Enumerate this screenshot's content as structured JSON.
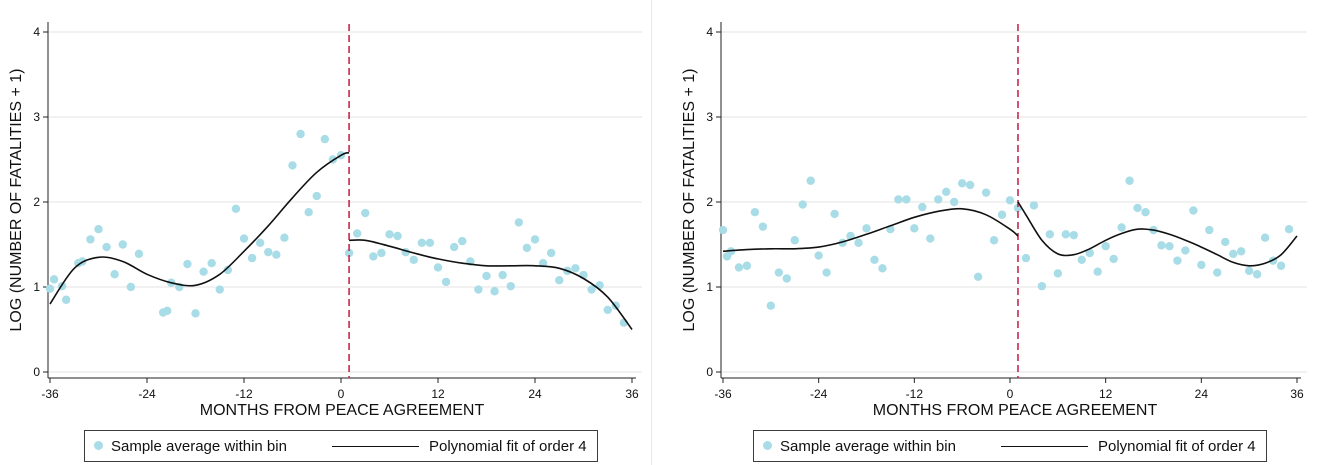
{
  "colors": {
    "points": "#a8dce6",
    "fit": "#111111",
    "cutoff": "#c8284f",
    "grid": "#e3e3e3"
  },
  "chart_data": [
    {
      "type": "scatter",
      "title": "",
      "xlabel": "MONTHS FROM PEACE AGREEMENT",
      "ylabel": "LOG (NUMBER OF FATALITIES + 1)",
      "xlim": [
        -36,
        36
      ],
      "ylim": [
        0,
        4
      ],
      "xticks": [
        "-36",
        "-24",
        "-12",
        "0",
        "12",
        "24",
        "36"
      ],
      "yticks": [
        "0",
        "1",
        "2",
        "3",
        "4"
      ],
      "grid": true,
      "cutoff_x": 1,
      "legend": {
        "position": "bottom",
        "points_label": "Sample average within bin",
        "fit_label": "Polynomial fit of order 4"
      },
      "points": {
        "x": [
          -36,
          -35.5,
          -34.5,
          -34,
          -32.5,
          -32,
          -31,
          -30,
          -29,
          -28,
          -27,
          -26,
          -25,
          -24,
          -22,
          -21.5,
          -21,
          -20,
          -19,
          -18,
          -17,
          -16,
          -15,
          -14,
          -13,
          -12,
          -11,
          -10,
          -9,
          -8,
          -7,
          -6,
          -5,
          -4,
          -3,
          -2,
          -1,
          0,
          1,
          2,
          3,
          4,
          5,
          6,
          7,
          8,
          9,
          10,
          11,
          12,
          13,
          14,
          15,
          16,
          17,
          18,
          19,
          20,
          21,
          22,
          23,
          24,
          25,
          26,
          27,
          28,
          29,
          30,
          31,
          32,
          33,
          34,
          35,
          36
        ],
        "y": [
          0.98,
          1.09,
          1.01,
          0.85,
          1.28,
          1.3,
          1.56,
          1.68,
          1.47,
          1.15,
          1.5,
          1.0,
          1.39,
          null,
          0.7,
          0.72,
          1.05,
          1.0,
          1.27,
          0.69,
          1.18,
          1.28,
          0.97,
          1.2,
          1.92,
          1.57,
          1.34,
          1.52,
          1.41,
          1.38,
          1.58,
          2.43,
          2.8,
          1.88,
          2.07,
          2.74,
          2.5,
          2.55,
          1.4,
          1.63,
          1.87,
          1.36,
          1.4,
          1.62,
          1.6,
          1.41,
          1.32,
          1.52,
          1.52,
          1.23,
          1.06,
          1.47,
          1.54,
          1.3,
          0.97,
          1.13,
          0.95,
          1.14,
          1.01,
          1.76,
          1.46,
          1.56,
          1.28,
          1.4,
          1.08,
          1.19,
          1.22,
          1.14,
          0.97,
          1.02,
          0.73,
          0.78,
          0.58,
          null
        ]
      },
      "fit_left": {
        "x": [
          -36,
          -33,
          -30,
          -27,
          -24,
          -21,
          -18,
          -15,
          -12,
          -9,
          -6,
          -3,
          0,
          1
        ],
        "y": [
          0.8,
          1.22,
          1.35,
          1.3,
          1.15,
          1.05,
          1.02,
          1.15,
          1.42,
          1.72,
          2.05,
          2.35,
          2.55,
          2.58
        ]
      },
      "fit_right": {
        "x": [
          1,
          3,
          6,
          9,
          12,
          15,
          18,
          21,
          24,
          27,
          30,
          33,
          36
        ],
        "y": [
          1.55,
          1.55,
          1.48,
          1.4,
          1.33,
          1.28,
          1.25,
          1.25,
          1.25,
          1.22,
          1.1,
          0.88,
          0.5
        ]
      }
    },
    {
      "type": "scatter",
      "title": "",
      "xlabel": "MONTHS FROM PEACE AGREEMENT",
      "ylabel": "LOG (NUMBER OF FATALITIES + 1)",
      "xlim": [
        -36,
        36
      ],
      "ylim": [
        0,
        4
      ],
      "xticks": [
        "-36",
        "-24",
        "-12",
        "0",
        "12",
        "24",
        "36"
      ],
      "yticks": [
        "0",
        "1",
        "2",
        "3",
        "4"
      ],
      "grid": true,
      "cutoff_x": 1,
      "legend": {
        "position": "bottom",
        "points_label": "Sample average within bin",
        "fit_label": "Polynomial fit of order 4"
      },
      "points": {
        "x": [
          -36,
          -35.5,
          -35,
          -34,
          -33,
          -32,
          -31,
          -30,
          -29,
          -28,
          -27,
          -26,
          -25,
          -24,
          -23,
          -22,
          -21,
          -20,
          -19,
          -18,
          -17,
          -16,
          -15,
          -14,
          -13,
          -12,
          -11,
          -10,
          -9,
          -8,
          -7,
          -6,
          -5,
          -4,
          -3,
          -2,
          -1,
          0,
          1,
          2,
          3,
          4,
          5,
          6,
          7,
          8,
          9,
          10,
          11,
          12,
          13,
          14,
          15,
          16,
          17,
          18,
          19,
          20,
          21,
          22,
          23,
          24,
          25,
          26,
          27,
          28,
          29,
          30,
          31,
          32,
          33,
          34,
          35,
          36
        ],
        "y": [
          1.67,
          1.36,
          1.42,
          1.23,
          1.25,
          1.88,
          1.71,
          0.78,
          1.17,
          1.1,
          1.55,
          1.97,
          2.25,
          1.37,
          1.17,
          1.86,
          1.52,
          1.6,
          1.52,
          1.69,
          1.32,
          1.22,
          1.68,
          2.03,
          2.03,
          1.69,
          1.94,
          1.57,
          2.03,
          2.12,
          2.0,
          2.22,
          2.2,
          1.12,
          2.11,
          1.55,
          1.85,
          2.02,
          1.93,
          1.34,
          1.96,
          1.01,
          1.62,
          1.16,
          1.62,
          1.61,
          1.32,
          1.4,
          1.18,
          1.48,
          1.33,
          1.7,
          2.25,
          1.93,
          1.88,
          1.67,
          1.49,
          1.48,
          1.31,
          1.43,
          1.9,
          1.26,
          1.67,
          1.17,
          1.53,
          1.39,
          1.42,
          1.19,
          1.15,
          1.58,
          1.31,
          1.25,
          1.68,
          null
        ]
      },
      "fit_left": {
        "x": [
          -36,
          -33,
          -30,
          -27,
          -24,
          -21,
          -18,
          -15,
          -12,
          -9,
          -6,
          -3,
          0,
          1
        ],
        "y": [
          1.42,
          1.44,
          1.45,
          1.45,
          1.47,
          1.53,
          1.62,
          1.72,
          1.82,
          1.89,
          1.92,
          1.85,
          1.68,
          1.6
        ]
      },
      "fit_right": {
        "x": [
          1,
          2,
          4,
          6,
          8,
          10,
          12,
          14,
          16,
          18,
          20,
          22,
          24,
          26,
          28,
          30,
          32,
          34,
          36
        ],
        "y": [
          2.0,
          1.85,
          1.55,
          1.39,
          1.38,
          1.45,
          1.55,
          1.63,
          1.68,
          1.67,
          1.62,
          1.55,
          1.47,
          1.38,
          1.29,
          1.25,
          1.28,
          1.38,
          1.6
        ]
      }
    }
  ]
}
